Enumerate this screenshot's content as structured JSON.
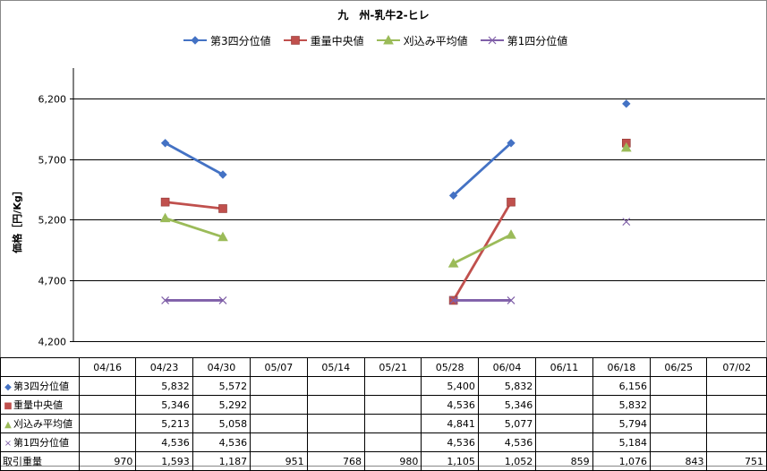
{
  "chart_data": {
    "type": "line",
    "title": "九　州-乳牛2-ヒレ",
    "ylabel": "価格［円/Kg］",
    "xlabel": "",
    "ylim": [
      4200,
      6450
    ],
    "yticks": [
      "4,200",
      "4,700",
      "5,200",
      "5,700",
      "6,200"
    ],
    "ytick_values": [
      4200,
      4700,
      5200,
      5700,
      6200
    ],
    "grid": true,
    "legend_position": "top",
    "categories": [
      "04/16",
      "04/23",
      "04/30",
      "05/07",
      "05/14",
      "05/21",
      "05/28",
      "06/04",
      "06/11",
      "06/18",
      "06/25",
      "07/02"
    ],
    "series": [
      {
        "name": "第3四分位値",
        "color": "#4472c4",
        "marker": "diamond",
        "values": [
          null,
          5832,
          5572,
          null,
          null,
          null,
          5400,
          5832,
          null,
          6156,
          null,
          null
        ],
        "labels": [
          "",
          "5,832",
          "5,572",
          "",
          "",
          "",
          "5,400",
          "5,832",
          "",
          "6,156",
          "",
          ""
        ]
      },
      {
        "name": "重量中央値",
        "color": "#c0504d",
        "marker": "square",
        "values": [
          null,
          5346,
          5292,
          null,
          null,
          null,
          4536,
          5346,
          null,
          5832,
          null,
          null
        ],
        "labels": [
          "",
          "5,346",
          "5,292",
          "",
          "",
          "",
          "4,536",
          "5,346",
          "",
          "5,832",
          "",
          ""
        ]
      },
      {
        "name": "刈込み平均値",
        "color": "#9bbb59",
        "marker": "triangle",
        "values": [
          null,
          5213,
          5058,
          null,
          null,
          null,
          4841,
          5077,
          null,
          5794,
          null,
          null
        ],
        "labels": [
          "",
          "5,213",
          "5,058",
          "",
          "",
          "",
          "4,841",
          "5,077",
          "",
          "5,794",
          "",
          ""
        ]
      },
      {
        "name": "第1四分位値",
        "color": "#7f5fa8",
        "marker": "x",
        "values": [
          null,
          4536,
          4536,
          null,
          null,
          null,
          4536,
          4536,
          null,
          5184,
          null,
          null
        ],
        "labels": [
          "",
          "4,536",
          "4,536",
          "",
          "",
          "",
          "4,536",
          "4,536",
          "",
          "5,184",
          "",
          ""
        ]
      }
    ],
    "volume_label": "取引重量",
    "volume": [
      "970",
      "1,593",
      "1,187",
      "951",
      "768",
      "980",
      "1,105",
      "1,052",
      "859",
      "1,076",
      "843",
      "751"
    ]
  }
}
